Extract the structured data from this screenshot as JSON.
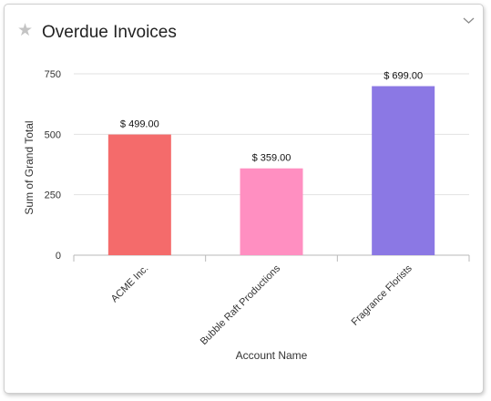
{
  "widget": {
    "title": "Overdue Invoices",
    "star_icon": "star-icon",
    "menu_icon": "chevron-down-icon"
  },
  "chart_data": {
    "type": "bar",
    "title": "Overdue Invoices",
    "xlabel": "Account Name",
    "ylabel": "Sum of Grand Total",
    "categories": [
      "ACME Inc.",
      "Bubble Raft Productions",
      "Fragrance Florists"
    ],
    "values": [
      499,
      359,
      699
    ],
    "data_labels": [
      "$ 499.00",
      "$ 359.00",
      "$ 699.00"
    ],
    "colors": [
      "#f46b6b",
      "#ff8fc1",
      "#8b78e4"
    ],
    "yticks": [
      0,
      250,
      500,
      750
    ],
    "ylim": [
      0,
      750
    ],
    "grid": true,
    "legend": "none"
  }
}
